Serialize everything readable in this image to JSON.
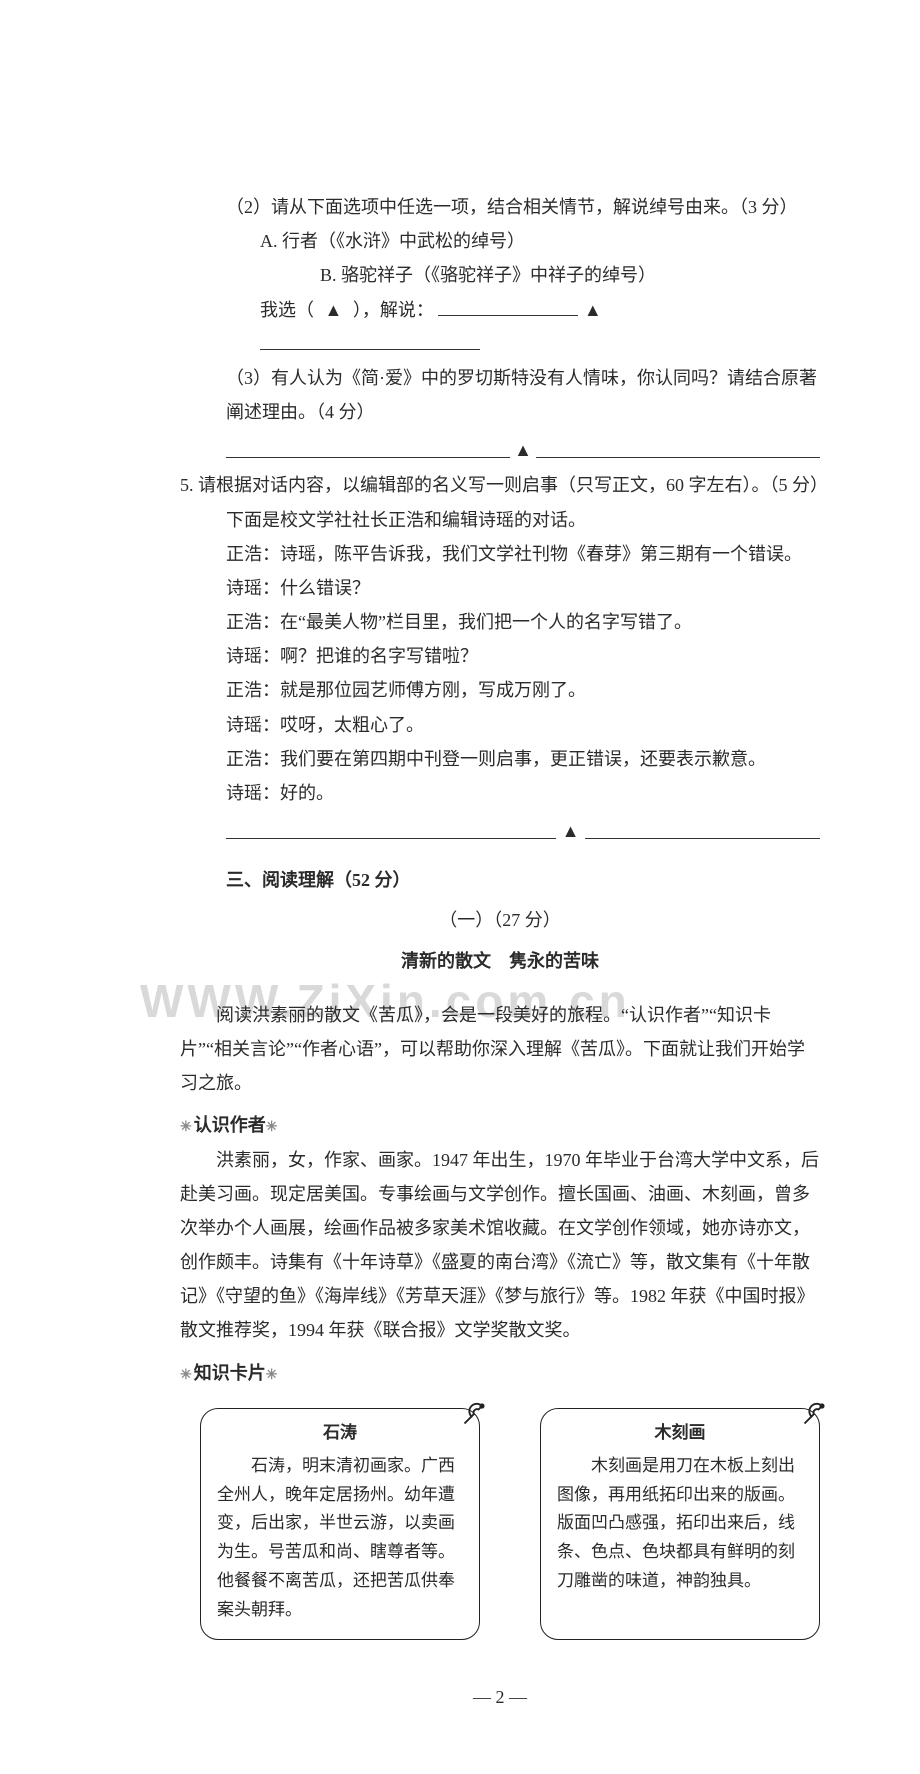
{
  "q4_2": {
    "prompt": "（2）请从下面选项中任选一项，结合相关情节，解说绰号由来。（3 分）",
    "optA": "A. 行者（《水浒》中武松的绰号）",
    "optB": "B. 骆驼祥子（《骆驼祥子》中祥子的绰号）",
    "choose_prefix": "我选（",
    "choose_suffix": "），解说：",
    "tri": "▲"
  },
  "q4_3": {
    "prompt": "（3）有人认为《简·爱》中的罗切斯特没有人情味，你认同吗？请结合原著阐述理由。（4 分）",
    "tri": "▲"
  },
  "q5": {
    "prompt": "5. 请根据对话内容，以编辑部的名义写一则启事（只写正文，60 字左右）。（5 分）",
    "lead": "下面是校文学社社长正浩和编辑诗瑶的对话。",
    "lines": [
      "正浩：诗瑶，陈平告诉我，我们文学社刊物《春芽》第三期有一个错误。",
      "诗瑶：什么错误？",
      "正浩：在“最美人物”栏目里，我们把一个人的名字写错了。",
      "诗瑶：啊？把谁的名字写错啦？",
      "正浩：就是那位园艺师傅方刚，写成万刚了。",
      "诗瑶：哎呀，太粗心了。",
      "正浩：我们要在第四期中刊登一则启事，更正错误，还要表示歉意。",
      "诗瑶：好的。"
    ],
    "tri": "▲"
  },
  "section3": {
    "title": "三、阅读理解（52 分）",
    "sub_no": "（一）（27 分）",
    "sub_title": "清新的散文　隽永的苦味"
  },
  "watermark": "WWW.ZiXin.com.cn",
  "reading": {
    "intro": "阅读洪素丽的散文《苦瓜》，会是一段美好的旅程。“认识作者”“知识卡片”“相关言论”“作者心语”，可以帮助你深入理解《苦瓜》。下面就让我们开始学习之旅。",
    "h1": "认识作者",
    "author": "洪素丽，女，作家、画家。1947 年出生，1970 年毕业于台湾大学中文系，后赴美习画。现定居美国。专事绘画与文学创作。擅长国画、油画、木刻画，曾多次举办个人画展，绘画作品被多家美术馆收藏。在文学创作领域，她亦诗亦文，创作颇丰。诗集有《十年诗草》《盛夏的南台湾》《流亡》等，散文集有《十年散记》《守望的鱼》《海岸线》《芳草天涯》《梦与旅行》等。1982 年获《中国时报》散文推荐奖，1994 年获《联合报》文学奖散文奖。",
    "h2": "知识卡片"
  },
  "cards": {
    "left": {
      "title": "石涛",
      "body": "石涛，明末清初画家。广西全州人，晚年定居扬州。幼年遭变，后出家，半世云游，以卖画为生。号苦瓜和尚、瞎尊者等。他餐餐不离苦瓜，还把苦瓜供奉案头朝拜。"
    },
    "right": {
      "title": "木刻画",
      "body": "木刻画是用刀在木板上刻出图像，再用纸拓印出来的版画。版面凹凸感强，拓印出来后，线条、色点、色块都具有鲜明的刻刀雕凿的味道，神韵独具。"
    }
  },
  "pagenum": "— 2 —"
}
